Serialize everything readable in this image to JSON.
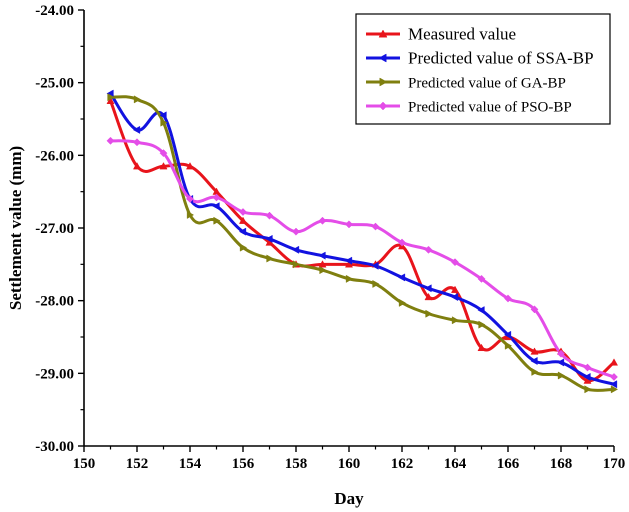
{
  "chart_data": {
    "type": "line",
    "xlabel": "Day",
    "ylabel": "Settlement value (mm)",
    "xlim": [
      150,
      170
    ],
    "ylim": [
      -30,
      -24
    ],
    "x_ticks": [
      "150",
      "152",
      "154",
      "156",
      "158",
      "160",
      "162",
      "164",
      "166",
      "168",
      "170"
    ],
    "y_ticks": [
      "-24.00",
      "-25.00",
      "-26.00",
      "-27.00",
      "-28.00",
      "-29.00",
      "-30.00"
    ],
    "legend_position": "top-right",
    "grid": false,
    "x": [
      151,
      152,
      153,
      154,
      155,
      156,
      157,
      158,
      159,
      160,
      161,
      162,
      163,
      164,
      165,
      166,
      167,
      168,
      169,
      170
    ],
    "series": [
      {
        "name": "Measured value",
        "color": "#e8141b",
        "marker": "triangle-up",
        "values": [
          -25.25,
          -26.15,
          -26.15,
          -26.15,
          -26.5,
          -26.9,
          -27.2,
          -27.5,
          -27.5,
          -27.5,
          -27.5,
          -27.25,
          -27.95,
          -27.85,
          -28.65,
          -28.5,
          -28.7,
          -28.7,
          -29.1,
          -28.85
        ]
      },
      {
        "name": "Predicted value of SSA-BP",
        "color": "#1212e0",
        "marker": "triangle-left",
        "values": [
          -25.15,
          -25.65,
          -25.45,
          -26.6,
          -26.7,
          -27.05,
          -27.15,
          -27.3,
          -27.38,
          -27.45,
          -27.52,
          -27.68,
          -27.83,
          -27.95,
          -28.13,
          -28.47,
          -28.83,
          -28.85,
          -29.05,
          -29.15
        ]
      },
      {
        "name": "Predicted value of GA-BP",
        "color": "#7f7f0f",
        "marker": "triangle-right",
        "values": [
          -25.2,
          -25.23,
          -25.55,
          -26.82,
          -26.9,
          -27.27,
          -27.42,
          -27.5,
          -27.58,
          -27.7,
          -27.77,
          -28.03,
          -28.18,
          -28.27,
          -28.33,
          -28.62,
          -28.98,
          -29.03,
          -29.22,
          -29.22
        ]
      },
      {
        "name": "Predicted value of PSO-BP",
        "color": "#e44de8",
        "marker": "diamond",
        "values": [
          -25.8,
          -25.82,
          -25.97,
          -26.6,
          -26.58,
          -26.78,
          -26.83,
          -27.05,
          -26.9,
          -26.95,
          -26.98,
          -27.2,
          -27.3,
          -27.47,
          -27.7,
          -27.97,
          -28.12,
          -28.73,
          -28.92,
          -29.05
        ]
      }
    ]
  }
}
